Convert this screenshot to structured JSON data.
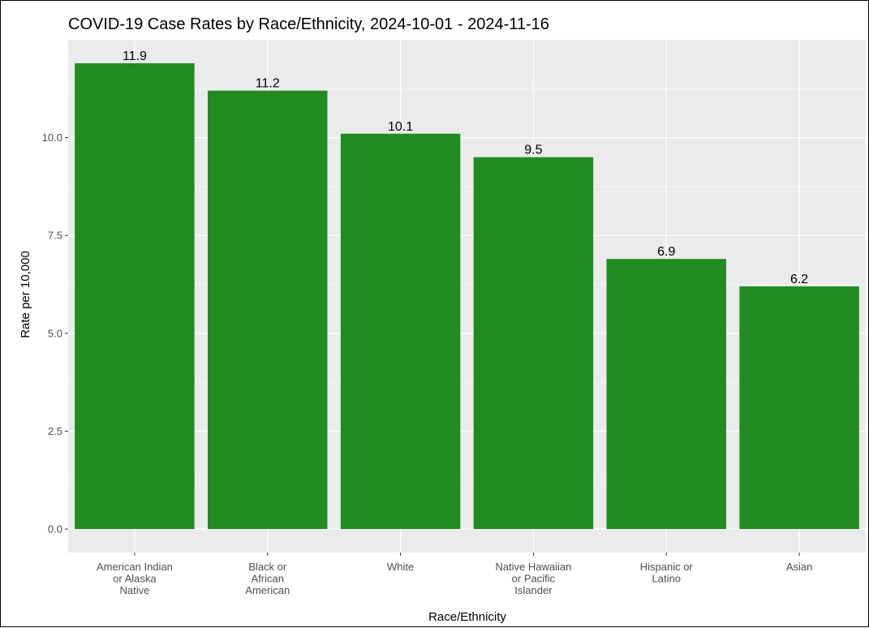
{
  "chart_data": {
    "type": "bar",
    "title": "COVID-19 Case Rates by Race/Ethnicity, 2024-10-01 - 2024-11-16",
    "xlabel": "Race/Ethnicity",
    "ylabel": "Rate per 10,000",
    "categories": [
      [
        "American Indian",
        "or Alaska",
        "Native"
      ],
      [
        "Black or",
        "African",
        "American"
      ],
      [
        "White"
      ],
      [
        "Native Hawaiian",
        "or Pacific",
        "Islander"
      ],
      [
        "Hispanic or",
        "Latino"
      ],
      [
        "Asian"
      ]
    ],
    "values": [
      11.9,
      11.2,
      10.1,
      9.5,
      6.9,
      6.2
    ],
    "value_labels": [
      "11.9",
      "11.2",
      "10.1",
      "9.5",
      "6.9",
      "6.2"
    ],
    "yticks": [
      0.0,
      2.5,
      5.0,
      7.5,
      10.0
    ],
    "ytick_labels": [
      "0.0",
      "2.5",
      "5.0",
      "7.5",
      "10.0"
    ],
    "ylim": [
      -0.6,
      12.5
    ],
    "grid": true,
    "legend": "none",
    "colors": {
      "bar": "#228b22",
      "panel_background": "#ebebeb",
      "grid_major": "#ffffff",
      "grid_minor": "#f5f5f5"
    }
  }
}
